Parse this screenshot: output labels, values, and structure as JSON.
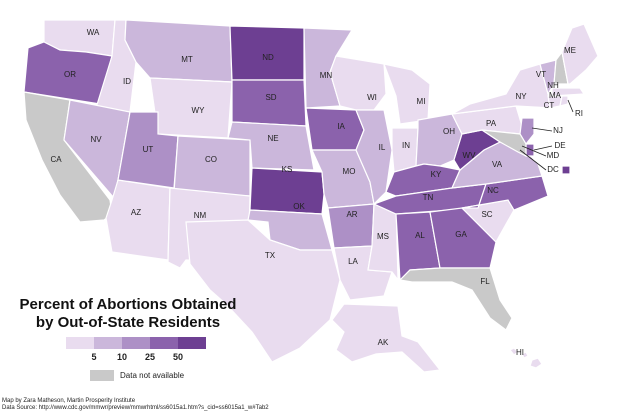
{
  "title_line1": "Percent of Abortions Obtained",
  "title_line2": "by Out-of-State Residents",
  "legend": {
    "ticks": [
      "5",
      "10",
      "25",
      "50"
    ],
    "colors": [
      "#e9dcef",
      "#cbb7db",
      "#ad90c6",
      "#8b62ac",
      "#6d3f92"
    ],
    "na_color": "#c9c9c9",
    "na_label": "Data not available"
  },
  "credits": {
    "author": "Map by Zara Matheson, Martin Prosperity Institute",
    "source": "Data Source: http://www.cdc.gov/mmwr/preview/mmwrhtml/ss6015a1.htm?s_cid=ss6015a1_w#Tab2"
  },
  "states": {
    "WA": {
      "label": "WA",
      "cls": 0
    },
    "OR": {
      "label": "OR",
      "cls": 3
    },
    "CA": {
      "label": "CA",
      "cls": -1
    },
    "ID": {
      "label": "ID",
      "cls": 0
    },
    "NV": {
      "label": "NV",
      "cls": 1
    },
    "AZ": {
      "label": "AZ",
      "cls": 0
    },
    "MT": {
      "label": "MT",
      "cls": 1
    },
    "WY": {
      "label": "WY",
      "cls": 0
    },
    "UT": {
      "label": "UT",
      "cls": 2
    },
    "CO": {
      "label": "CO",
      "cls": 1
    },
    "NM": {
      "label": "NM",
      "cls": 0
    },
    "ND": {
      "label": "ND",
      "cls": 4
    },
    "SD": {
      "label": "SD",
      "cls": 3
    },
    "NE": {
      "label": "NE",
      "cls": 1
    },
    "KS": {
      "label": "KS",
      "cls": 4
    },
    "OK": {
      "label": "OK",
      "cls": 1
    },
    "TX": {
      "label": "TX",
      "cls": 0
    },
    "MN": {
      "label": "MN",
      "cls": 1
    },
    "IA": {
      "label": "IA",
      "cls": 3
    },
    "MO": {
      "label": "MO",
      "cls": 1
    },
    "AR": {
      "label": "AR",
      "cls": 2
    },
    "LA": {
      "label": "LA",
      "cls": 0
    },
    "WI": {
      "label": "WI",
      "cls": 0
    },
    "IL": {
      "label": "IL",
      "cls": 1
    },
    "MS": {
      "label": "MS",
      "cls": 0
    },
    "MI": {
      "label": "MI",
      "cls": 0
    },
    "IN": {
      "label": "IN",
      "cls": 0
    },
    "OH": {
      "label": "OH",
      "cls": 1
    },
    "KY": {
      "label": "KY",
      "cls": 3
    },
    "TN": {
      "label": "TN",
      "cls": 3
    },
    "AL": {
      "label": "AL",
      "cls": 3
    },
    "GA": {
      "label": "GA",
      "cls": 3
    },
    "FL": {
      "label": "FL",
      "cls": -1
    },
    "SC": {
      "label": "SC",
      "cls": 0
    },
    "NC": {
      "label": "NC",
      "cls": 3
    },
    "VA": {
      "label": "VA",
      "cls": 1
    },
    "WV": {
      "label": "WV",
      "cls": 4
    },
    "PA": {
      "label": "PA",
      "cls": 0
    },
    "NY": {
      "label": "NY",
      "cls": 0
    },
    "VT": {
      "label": "VT",
      "cls": 1
    },
    "NH": {
      "label": "NH",
      "cls": -1
    },
    "ME": {
      "label": "ME",
      "cls": 0
    },
    "MA": {
      "label": "MA",
      "cls": 0
    },
    "CT": {
      "label": "CT",
      "cls": 0
    },
    "RI": {
      "label": "RI",
      "cls": 0
    },
    "NJ": {
      "label": "NJ",
      "cls": 2
    },
    "DE": {
      "label": "DE",
      "cls": 3
    },
    "MD": {
      "label": "MD",
      "cls": -1
    },
    "DC": {
      "label": "DC",
      "cls": 4
    },
    "AK": {
      "label": "AK",
      "cls": 0
    },
    "HI": {
      "label": "HI",
      "cls": 0
    }
  }
}
